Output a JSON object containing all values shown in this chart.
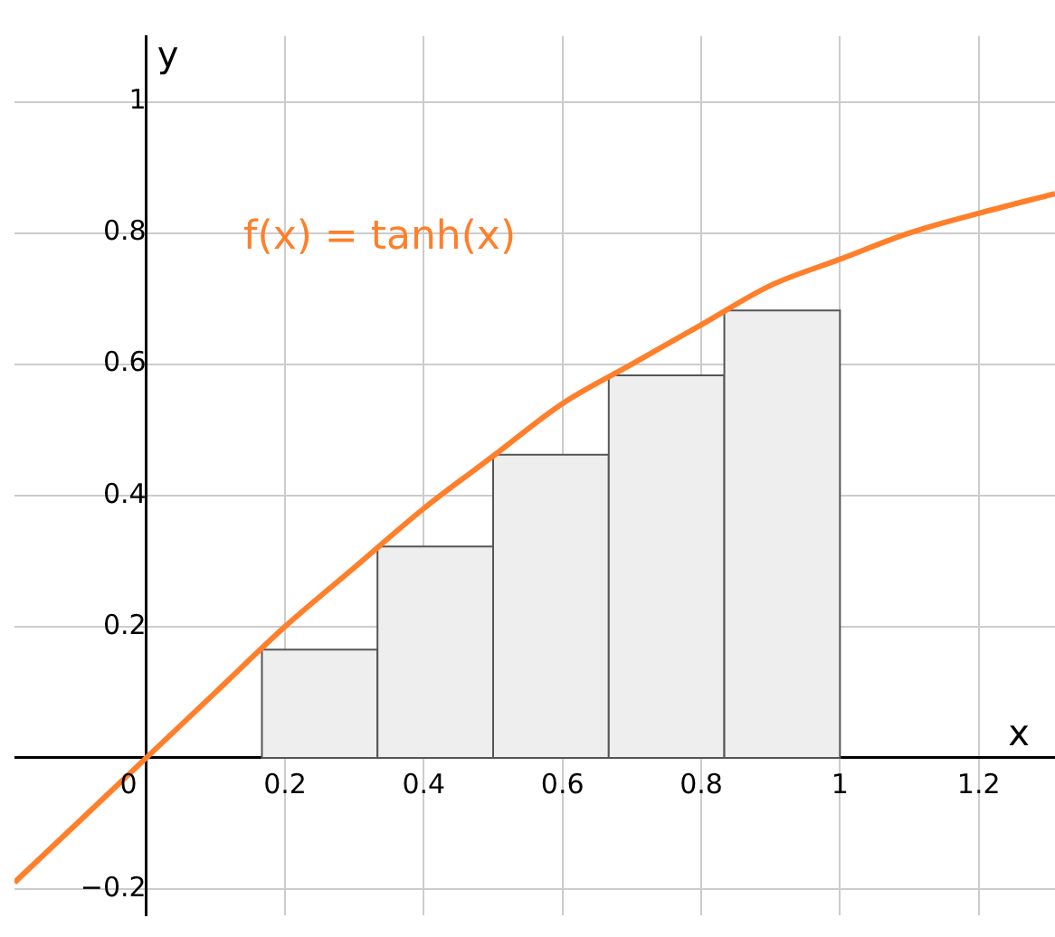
{
  "chart_data": {
    "type": "histogram",
    "xlabel": "x",
    "ylabel": "y",
    "bins": [
      0.1667,
      0.3333,
      0.5,
      0.6667,
      0.8333,
      1
    ],
    "values": [
      0.165,
      0.322,
      0.462,
      0.583,
      0.682
    ],
    "color": "#eeeeee",
    "series": [
      {
        "type": "line",
        "name": "f(x) = tanh(x)",
        "color": "#ff7f2a",
        "x": [
          -0.19,
          -0.1,
          0,
          0.1,
          0.2,
          0.3,
          0.4,
          0.5,
          0.6,
          0.7,
          0.8,
          0.9,
          1,
          1.1,
          1.2,
          1.31
        ],
        "values": [
          -0.19,
          -0.1,
          0,
          0.1,
          0.2,
          0.29,
          0.38,
          0.46,
          0.54,
          0.6,
          0.66,
          0.72,
          0.76,
          0.8,
          0.83,
          0.86
        ]
      }
    ],
    "xlim": [
      -0.19,
      1.31
    ],
    "ylim": [
      -0.24,
      1.1
    ],
    "xticks": [
      0,
      0.2,
      0.4,
      0.6,
      0.8,
      1,
      1.2
    ],
    "yticks": [
      {
        "value": -0.2,
        "label": "−0.2"
      },
      0.2,
      0.4,
      0.6,
      0.8,
      1
    ],
    "grid": true,
    "legend": false
  }
}
